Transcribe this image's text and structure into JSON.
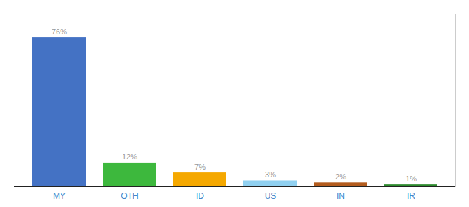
{
  "chart_data": {
    "type": "bar",
    "categories": [
      "MY",
      "OTH",
      "ID",
      "US",
      "IN",
      "IR"
    ],
    "values": [
      76,
      12,
      7,
      3,
      2,
      1
    ],
    "value_labels": [
      "76%",
      "12%",
      "7%",
      "3%",
      "2%",
      "1%"
    ],
    "colors": [
      "#4472c4",
      "#3db83d",
      "#f5a800",
      "#90d0f0",
      "#b35c1e",
      "#2d8a2d"
    ],
    "ylim": [
      0,
      88
    ],
    "grid": false,
    "data_labels": true,
    "tick_labels": "x"
  }
}
